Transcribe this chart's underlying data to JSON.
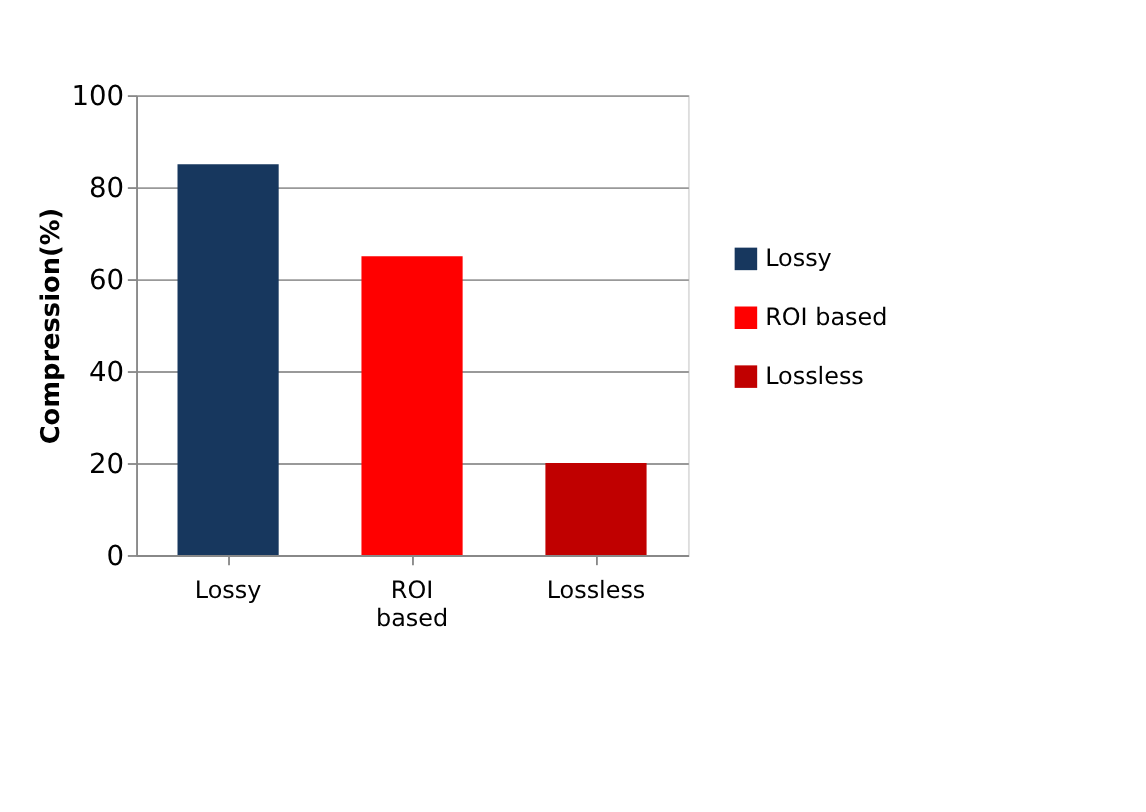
{
  "chart_data": {
    "type": "bar",
    "ylabel": "Compression(%)",
    "categories": [
      "Lossy",
      "ROI based",
      "Lossless"
    ],
    "series": [
      {
        "name": "Lossy",
        "color": "#17375e",
        "values": [
          85,
          null,
          null
        ]
      },
      {
        "name": "ROI based",
        "color": "#ff0000",
        "values": [
          null,
          65,
          null
        ]
      },
      {
        "name": "Lossless",
        "color": "#c00000",
        "values": [
          null,
          null,
          20
        ]
      }
    ],
    "ylim": [
      0,
      100
    ],
    "yticks": [
      0,
      20,
      40,
      60,
      80,
      100
    ],
    "grid": "y",
    "legend": "right"
  }
}
